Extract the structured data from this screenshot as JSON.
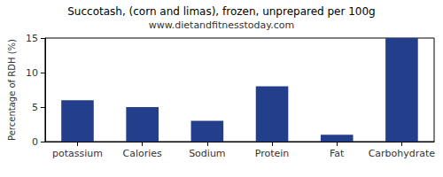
{
  "chart_data": {
    "type": "bar",
    "title": "Succotash, (corn and limas), frozen, unprepared per 100g",
    "subtitle": "www.dietandfitnesstoday.com",
    "y_label": "Percentage of RDH (%)",
    "categories": [
      "potassium",
      "Calories",
      "Sodium",
      "Protein",
      "Fat",
      "Carbohydrate"
    ],
    "values": [
      6,
      5,
      3,
      8,
      1,
      15
    ],
    "color": "#233e8b",
    "ylim": [
      0,
      15
    ],
    "yticks": [
      0,
      5,
      10,
      15
    ],
    "grid": false
  }
}
